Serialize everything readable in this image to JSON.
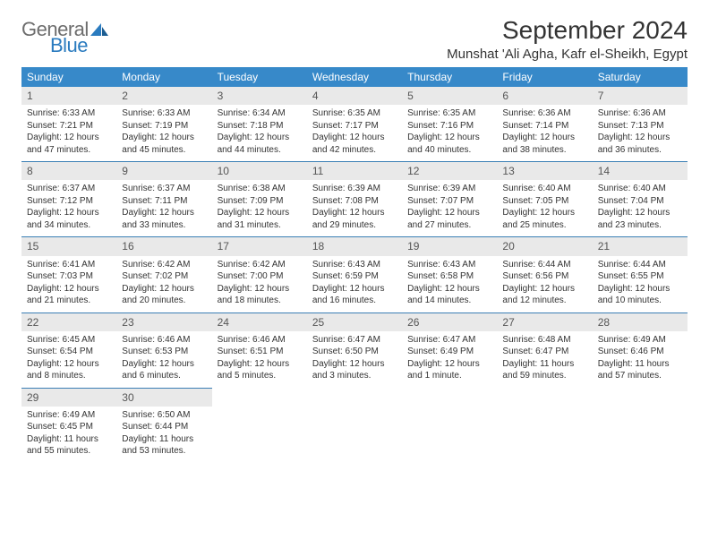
{
  "brand": {
    "part1": "General",
    "part2": "Blue",
    "icon_color": "#2a7bbf",
    "text_gray": "#6d6d6d"
  },
  "title": "September 2024",
  "location": "Munshat 'Ali Agha, Kafr el-Sheikh, Egypt",
  "colors": {
    "header_bg": "#3789c9",
    "header_text": "#ffffff",
    "cell_border": "#3b7fb5",
    "daynum_bg": "#e9e9e9",
    "text": "#333333"
  },
  "columns": [
    "Sunday",
    "Monday",
    "Tuesday",
    "Wednesday",
    "Thursday",
    "Friday",
    "Saturday"
  ],
  "weeks": [
    [
      {
        "day": "1",
        "sunrise": "Sunrise: 6:33 AM",
        "sunset": "Sunset: 7:21 PM",
        "d1": "Daylight: 12 hours",
        "d2": "and 47 minutes."
      },
      {
        "day": "2",
        "sunrise": "Sunrise: 6:33 AM",
        "sunset": "Sunset: 7:19 PM",
        "d1": "Daylight: 12 hours",
        "d2": "and 45 minutes."
      },
      {
        "day": "3",
        "sunrise": "Sunrise: 6:34 AM",
        "sunset": "Sunset: 7:18 PM",
        "d1": "Daylight: 12 hours",
        "d2": "and 44 minutes."
      },
      {
        "day": "4",
        "sunrise": "Sunrise: 6:35 AM",
        "sunset": "Sunset: 7:17 PM",
        "d1": "Daylight: 12 hours",
        "d2": "and 42 minutes."
      },
      {
        "day": "5",
        "sunrise": "Sunrise: 6:35 AM",
        "sunset": "Sunset: 7:16 PM",
        "d1": "Daylight: 12 hours",
        "d2": "and 40 minutes."
      },
      {
        "day": "6",
        "sunrise": "Sunrise: 6:36 AM",
        "sunset": "Sunset: 7:14 PM",
        "d1": "Daylight: 12 hours",
        "d2": "and 38 minutes."
      },
      {
        "day": "7",
        "sunrise": "Sunrise: 6:36 AM",
        "sunset": "Sunset: 7:13 PM",
        "d1": "Daylight: 12 hours",
        "d2": "and 36 minutes."
      }
    ],
    [
      {
        "day": "8",
        "sunrise": "Sunrise: 6:37 AM",
        "sunset": "Sunset: 7:12 PM",
        "d1": "Daylight: 12 hours",
        "d2": "and 34 minutes."
      },
      {
        "day": "9",
        "sunrise": "Sunrise: 6:37 AM",
        "sunset": "Sunset: 7:11 PM",
        "d1": "Daylight: 12 hours",
        "d2": "and 33 minutes."
      },
      {
        "day": "10",
        "sunrise": "Sunrise: 6:38 AM",
        "sunset": "Sunset: 7:09 PM",
        "d1": "Daylight: 12 hours",
        "d2": "and 31 minutes."
      },
      {
        "day": "11",
        "sunrise": "Sunrise: 6:39 AM",
        "sunset": "Sunset: 7:08 PM",
        "d1": "Daylight: 12 hours",
        "d2": "and 29 minutes."
      },
      {
        "day": "12",
        "sunrise": "Sunrise: 6:39 AM",
        "sunset": "Sunset: 7:07 PM",
        "d1": "Daylight: 12 hours",
        "d2": "and 27 minutes."
      },
      {
        "day": "13",
        "sunrise": "Sunrise: 6:40 AM",
        "sunset": "Sunset: 7:05 PM",
        "d1": "Daylight: 12 hours",
        "d2": "and 25 minutes."
      },
      {
        "day": "14",
        "sunrise": "Sunrise: 6:40 AM",
        "sunset": "Sunset: 7:04 PM",
        "d1": "Daylight: 12 hours",
        "d2": "and 23 minutes."
      }
    ],
    [
      {
        "day": "15",
        "sunrise": "Sunrise: 6:41 AM",
        "sunset": "Sunset: 7:03 PM",
        "d1": "Daylight: 12 hours",
        "d2": "and 21 minutes."
      },
      {
        "day": "16",
        "sunrise": "Sunrise: 6:42 AM",
        "sunset": "Sunset: 7:02 PM",
        "d1": "Daylight: 12 hours",
        "d2": "and 20 minutes."
      },
      {
        "day": "17",
        "sunrise": "Sunrise: 6:42 AM",
        "sunset": "Sunset: 7:00 PM",
        "d1": "Daylight: 12 hours",
        "d2": "and 18 minutes."
      },
      {
        "day": "18",
        "sunrise": "Sunrise: 6:43 AM",
        "sunset": "Sunset: 6:59 PM",
        "d1": "Daylight: 12 hours",
        "d2": "and 16 minutes."
      },
      {
        "day": "19",
        "sunrise": "Sunrise: 6:43 AM",
        "sunset": "Sunset: 6:58 PM",
        "d1": "Daylight: 12 hours",
        "d2": "and 14 minutes."
      },
      {
        "day": "20",
        "sunrise": "Sunrise: 6:44 AM",
        "sunset": "Sunset: 6:56 PM",
        "d1": "Daylight: 12 hours",
        "d2": "and 12 minutes."
      },
      {
        "day": "21",
        "sunrise": "Sunrise: 6:44 AM",
        "sunset": "Sunset: 6:55 PM",
        "d1": "Daylight: 12 hours",
        "d2": "and 10 minutes."
      }
    ],
    [
      {
        "day": "22",
        "sunrise": "Sunrise: 6:45 AM",
        "sunset": "Sunset: 6:54 PM",
        "d1": "Daylight: 12 hours",
        "d2": "and 8 minutes."
      },
      {
        "day": "23",
        "sunrise": "Sunrise: 6:46 AM",
        "sunset": "Sunset: 6:53 PM",
        "d1": "Daylight: 12 hours",
        "d2": "and 6 minutes."
      },
      {
        "day": "24",
        "sunrise": "Sunrise: 6:46 AM",
        "sunset": "Sunset: 6:51 PM",
        "d1": "Daylight: 12 hours",
        "d2": "and 5 minutes."
      },
      {
        "day": "25",
        "sunrise": "Sunrise: 6:47 AM",
        "sunset": "Sunset: 6:50 PM",
        "d1": "Daylight: 12 hours",
        "d2": "and 3 minutes."
      },
      {
        "day": "26",
        "sunrise": "Sunrise: 6:47 AM",
        "sunset": "Sunset: 6:49 PM",
        "d1": "Daylight: 12 hours",
        "d2": "and 1 minute."
      },
      {
        "day": "27",
        "sunrise": "Sunrise: 6:48 AM",
        "sunset": "Sunset: 6:47 PM",
        "d1": "Daylight: 11 hours",
        "d2": "and 59 minutes."
      },
      {
        "day": "28",
        "sunrise": "Sunrise: 6:49 AM",
        "sunset": "Sunset: 6:46 PM",
        "d1": "Daylight: 11 hours",
        "d2": "and 57 minutes."
      }
    ],
    [
      {
        "day": "29",
        "sunrise": "Sunrise: 6:49 AM",
        "sunset": "Sunset: 6:45 PM",
        "d1": "Daylight: 11 hours",
        "d2": "and 55 minutes."
      },
      {
        "day": "30",
        "sunrise": "Sunrise: 6:50 AM",
        "sunset": "Sunset: 6:44 PM",
        "d1": "Daylight: 11 hours",
        "d2": "and 53 minutes."
      },
      null,
      null,
      null,
      null,
      null
    ]
  ]
}
